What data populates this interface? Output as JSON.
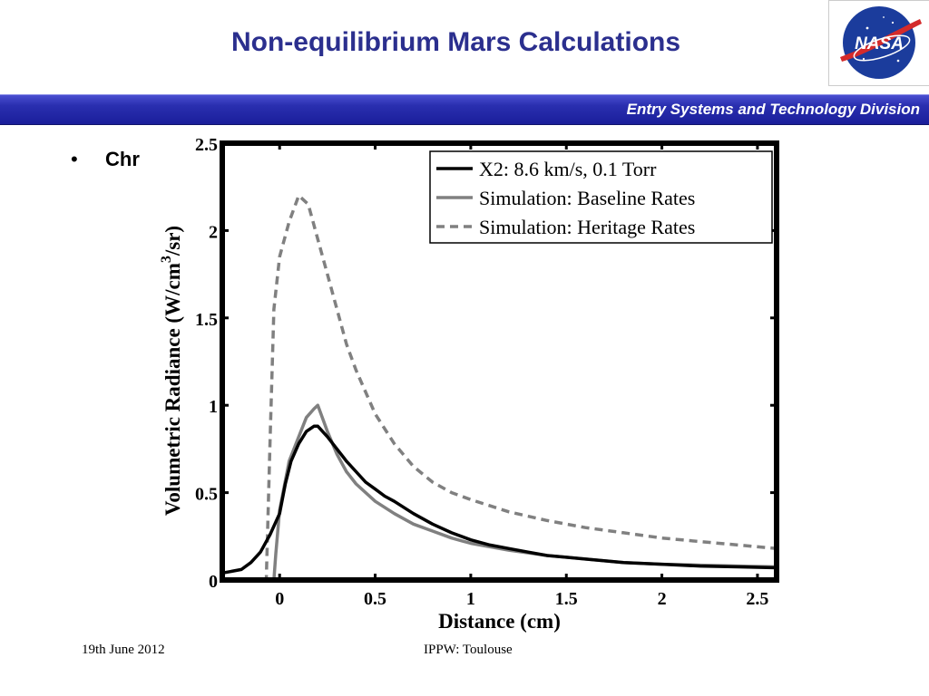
{
  "slide": {
    "title": "Non-equilibrium Mars Calculations",
    "banner_text": "Entry Systems and Technology Division",
    "bullet_text": "Chr",
    "footer_left": "19th June 2012",
    "footer_center": "IPPW: Toulouse"
  },
  "logo": {
    "text": "NASA"
  },
  "colors": {
    "title": "#2b2f8e",
    "banner": "#2a2fb0",
    "experiment": "#000000",
    "simulation": "#808080"
  },
  "chart_data": {
    "type": "line",
    "xlabel": "Distance (cm)",
    "ylabel_main": "Volumetric Radiance (W/cm",
    "ylabel_sup": "3",
    "ylabel_end": "/sr)",
    "xlim": [
      -0.3,
      2.6
    ],
    "ylim": [
      0,
      2.5
    ],
    "xticks": [
      0,
      0.5,
      1,
      1.5,
      2,
      2.5
    ],
    "xtick_labels": [
      "0",
      "0.5",
      "1",
      "1.5",
      "2",
      "2.5"
    ],
    "yticks": [
      0,
      0.5,
      1,
      1.5,
      2,
      2.5
    ],
    "ytick_labels": [
      "0",
      "0.5",
      "1",
      "1.5",
      "2",
      "2.5"
    ],
    "legend_position": "top-right",
    "series": [
      {
        "name": "X2: 8.6 km/s, 0.1 Torr",
        "style": "solid-black",
        "x": [
          -0.3,
          -0.25,
          -0.2,
          -0.15,
          -0.1,
          -0.05,
          0.0,
          0.03,
          0.06,
          0.1,
          0.14,
          0.18,
          0.2,
          0.25,
          0.3,
          0.35,
          0.4,
          0.45,
          0.5,
          0.55,
          0.6,
          0.7,
          0.8,
          0.9,
          1.0,
          1.1,
          1.2,
          1.3,
          1.4,
          1.5,
          1.6,
          1.8,
          2.0,
          2.2,
          2.4,
          2.6
        ],
        "y": [
          0.04,
          0.05,
          0.06,
          0.1,
          0.16,
          0.26,
          0.38,
          0.55,
          0.68,
          0.78,
          0.85,
          0.88,
          0.88,
          0.82,
          0.75,
          0.68,
          0.62,
          0.56,
          0.52,
          0.48,
          0.45,
          0.38,
          0.32,
          0.27,
          0.23,
          0.2,
          0.18,
          0.16,
          0.14,
          0.13,
          0.12,
          0.1,
          0.09,
          0.08,
          0.075,
          0.07
        ]
      },
      {
        "name": "Simulation: Baseline Rates",
        "style": "solid-gray",
        "x": [
          -0.3,
          -0.03,
          -0.02,
          0.0,
          0.05,
          0.1,
          0.14,
          0.18,
          0.2,
          0.25,
          0.3,
          0.35,
          0.4,
          0.5,
          0.6,
          0.7,
          0.8,
          0.9,
          1.0,
          1.2,
          1.4,
          1.6,
          1.8,
          2.0,
          2.2,
          2.4,
          2.6
        ],
        "y": [
          0.0,
          0.0,
          0.15,
          0.4,
          0.68,
          0.82,
          0.93,
          0.98,
          1.0,
          0.85,
          0.72,
          0.62,
          0.55,
          0.45,
          0.38,
          0.32,
          0.28,
          0.24,
          0.21,
          0.17,
          0.14,
          0.12,
          0.1,
          0.09,
          0.085,
          0.08,
          0.075
        ]
      },
      {
        "name": "Simulation: Heritage Rates",
        "style": "dashed-gray",
        "x": [
          -0.3,
          -0.07,
          -0.05,
          -0.03,
          0.0,
          0.05,
          0.1,
          0.15,
          0.2,
          0.25,
          0.3,
          0.35,
          0.4,
          0.5,
          0.6,
          0.7,
          0.8,
          0.9,
          1.0,
          1.2,
          1.4,
          1.6,
          1.8,
          2.0,
          2.2,
          2.4,
          2.6
        ],
        "y": [
          0.0,
          0.0,
          0.8,
          1.55,
          1.85,
          2.05,
          2.2,
          2.15,
          1.95,
          1.75,
          1.55,
          1.35,
          1.2,
          0.95,
          0.78,
          0.65,
          0.56,
          0.5,
          0.46,
          0.39,
          0.34,
          0.3,
          0.27,
          0.24,
          0.22,
          0.2,
          0.18
        ]
      }
    ]
  }
}
